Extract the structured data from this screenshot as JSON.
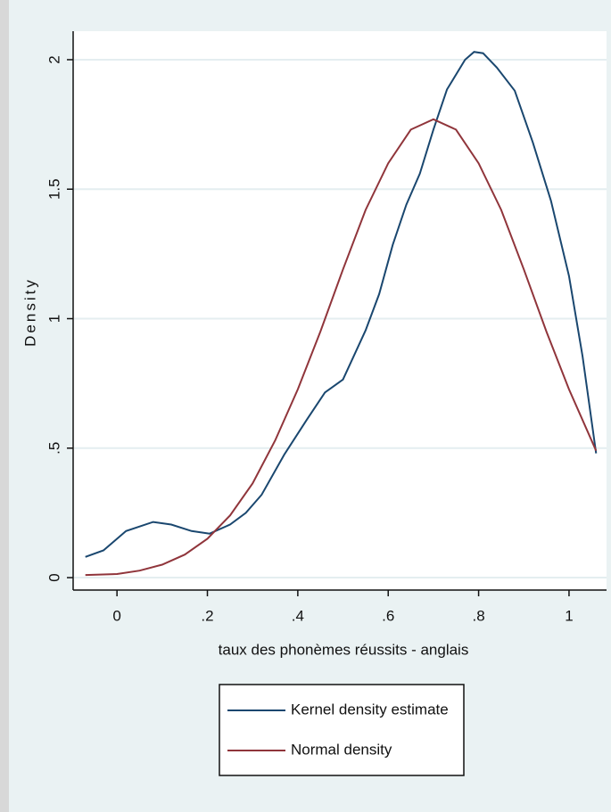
{
  "chart_data": {
    "type": "line",
    "y_label": "Density",
    "x_label": "taux des phonèmes réussits - anglais",
    "xlim": [
      -0.097,
      1.083
    ],
    "ylim": [
      -0.048,
      2.11
    ],
    "xticks": [
      0,
      {
        "value": 0.2,
        "label": ".2"
      },
      {
        "value": 0.4,
        "label": ".4"
      },
      {
        "value": 0.6,
        "label": ".6"
      },
      {
        "value": 0.8,
        "label": ".8"
      },
      1
    ],
    "yticks": [
      0,
      {
        "value": 0.5,
        "label": ".5"
      },
      1,
      {
        "value": 1.5,
        "label": "1.5"
      },
      2
    ],
    "grid": true,
    "series": [
      {
        "name": "Kernel density estimate",
        "color": "#1a476f",
        "x": [
          -0.07,
          -0.03,
          0.02,
          0.08,
          0.12,
          0.165,
          0.205,
          0.25,
          0.285,
          0.32,
          0.37,
          0.42,
          0.46,
          0.5,
          0.55,
          0.58,
          0.61,
          0.64,
          0.67,
          0.7,
          0.73,
          0.77,
          0.79,
          0.81,
          0.84,
          0.88,
          0.92,
          0.96,
          1.0,
          1.03,
          1.06
        ],
        "values": [
          0.08,
          0.105,
          0.18,
          0.215,
          0.205,
          0.18,
          0.17,
          0.205,
          0.25,
          0.32,
          0.475,
          0.61,
          0.715,
          0.765,
          0.955,
          1.095,
          1.285,
          1.44,
          1.56,
          1.73,
          1.885,
          2.0,
          2.03,
          2.025,
          1.97,
          1.88,
          1.68,
          1.455,
          1.165,
          0.855,
          0.48
        ]
      },
      {
        "name": "Normal density",
        "color": "#90353b",
        "x": [
          -0.07,
          0.0,
          0.05,
          0.1,
          0.15,
          0.2,
          0.25,
          0.3,
          0.35,
          0.4,
          0.45,
          0.5,
          0.55,
          0.6,
          0.65,
          0.7,
          0.75,
          0.8,
          0.85,
          0.9,
          0.95,
          1.0,
          1.06
        ],
        "values": [
          0.01,
          0.014,
          0.027,
          0.05,
          0.089,
          0.15,
          0.24,
          0.364,
          0.53,
          0.727,
          0.95,
          1.19,
          1.42,
          1.6,
          1.73,
          1.77,
          1.73,
          1.6,
          1.42,
          1.19,
          0.95,
          0.727,
          0.49
        ]
      }
    ]
  }
}
